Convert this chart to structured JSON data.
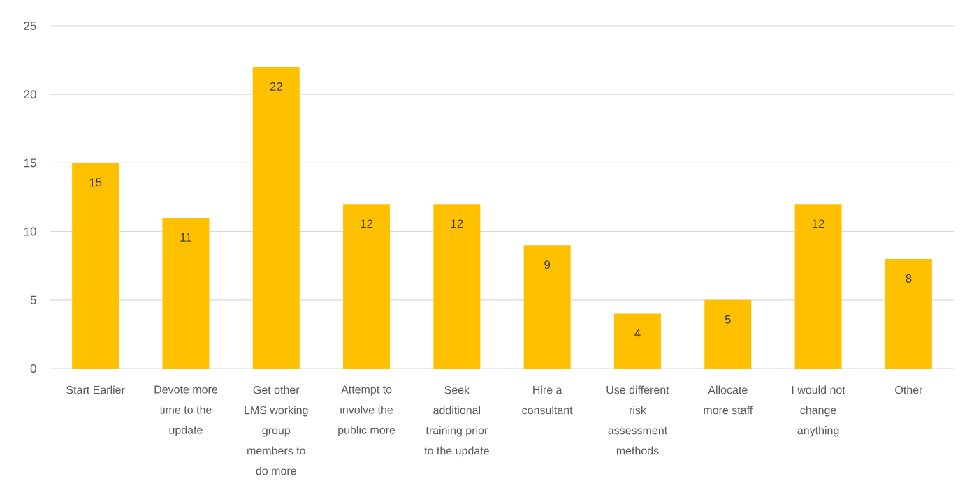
{
  "chart_data": {
    "type": "bar",
    "categories": [
      "Start Earlier",
      "Devote more time to the update",
      "Get other LMS working group members to do more",
      "Attempt to involve the public more",
      "Seek additional training prior to the update",
      "Hire a consultant",
      "Use different risk assessment methods",
      "Allocate more staff",
      "I would not change anything",
      "Other"
    ],
    "values": [
      15,
      11,
      22,
      12,
      12,
      9,
      4,
      5,
      12,
      8
    ],
    "color": "#ffc000",
    "ylim": [
      0,
      25
    ],
    "yticks": [
      0,
      5,
      10,
      15,
      20,
      25
    ],
    "grid": "y",
    "data_labels": true
  }
}
